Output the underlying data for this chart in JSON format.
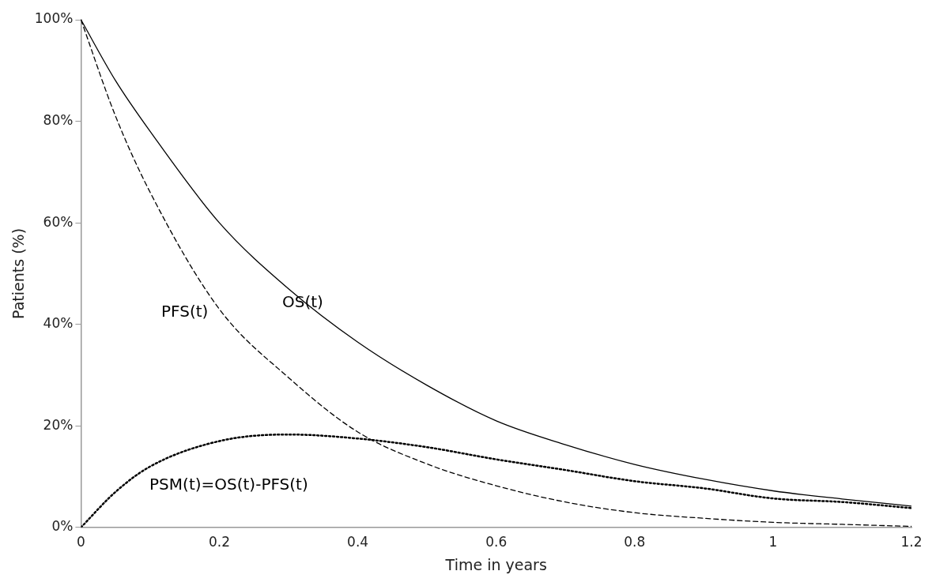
{
  "chart_data": {
    "type": "line",
    "xlabel": "Time in years",
    "ylabel": "Patients (%)",
    "x": [
      0,
      0.05,
      0.1,
      0.2,
      0.3,
      0.4,
      0.5,
      0.6,
      0.7,
      0.8,
      0.9,
      1.0,
      1.1,
      1.2
    ],
    "series": [
      {
        "name": "OS(t)",
        "color": "#000000",
        "line_style": "solid",
        "values": [
          100,
          88,
          78,
          60,
          47,
          36.5,
          28,
          21,
          16.3,
          12.4,
          9.5,
          7.2,
          5.6,
          4.2
        ]
      },
      {
        "name": "PFS(t)",
        "color": "#000000",
        "line_style": "dashed",
        "values": [
          100,
          81,
          66,
          43,
          29.5,
          18.8,
          12.5,
          8.2,
          5,
          2.9,
          1.8,
          1,
          0.6,
          0.2
        ]
      },
      {
        "name": "PSM(t)=OS(t)-PFS(t)",
        "color": "#000000",
        "line_style": "dotted",
        "values": [
          0,
          7,
          12,
          17,
          18.3,
          17.5,
          15.8,
          13.4,
          11.3,
          9.1,
          7.7,
          5.7,
          5,
          3.8
        ]
      }
    ],
    "xlim": [
      0,
      1.2
    ],
    "xticks": [
      0,
      0.2,
      0.4,
      0.6,
      0.8,
      1,
      1.2
    ],
    "ylim": [
      0,
      100
    ],
    "yticks": [
      {
        "value": 0,
        "label": "0%"
      },
      {
        "value": 20,
        "label": "20%"
      },
      {
        "value": 40,
        "label": "40%"
      },
      {
        "value": 60,
        "label": "60%"
      },
      {
        "value": 80,
        "label": "80%"
      },
      {
        "value": 100,
        "label": "100%"
      }
    ],
    "grid": false,
    "legend": false,
    "marker": "none"
  }
}
